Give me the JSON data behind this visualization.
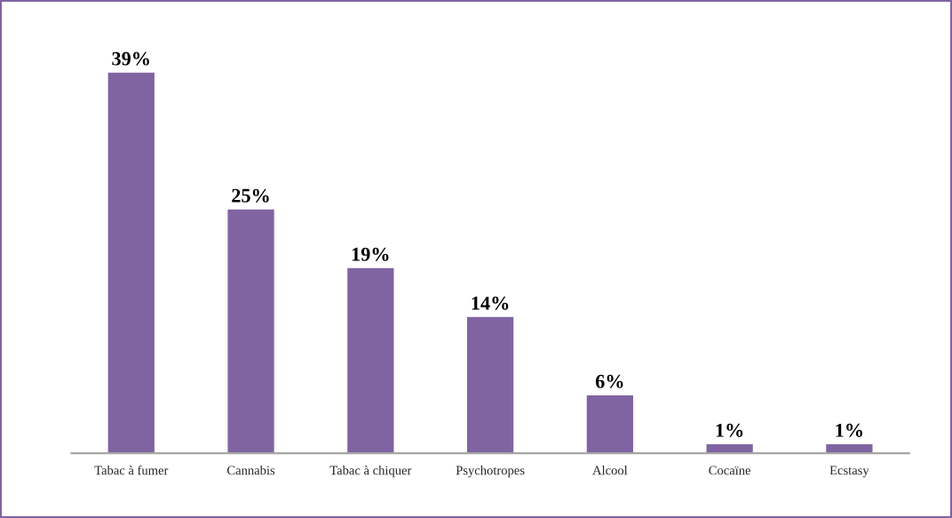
{
  "chart_data": {
    "type": "bar",
    "categories": [
      "Tabac à fumer",
      "Cannabis",
      "Tabac à chiquer",
      "Psychotropes",
      "Alcool",
      "Cocaïne",
      "Ecstasy"
    ],
    "values": [
      39,
      25,
      19,
      14,
      6,
      1,
      1
    ],
    "value_labels": [
      "39%",
      "25%",
      "19%",
      "14%",
      "6%",
      "1%",
      "1%"
    ],
    "color": "#8064a2",
    "grid": false,
    "legend": false,
    "tick_labels": "x"
  }
}
